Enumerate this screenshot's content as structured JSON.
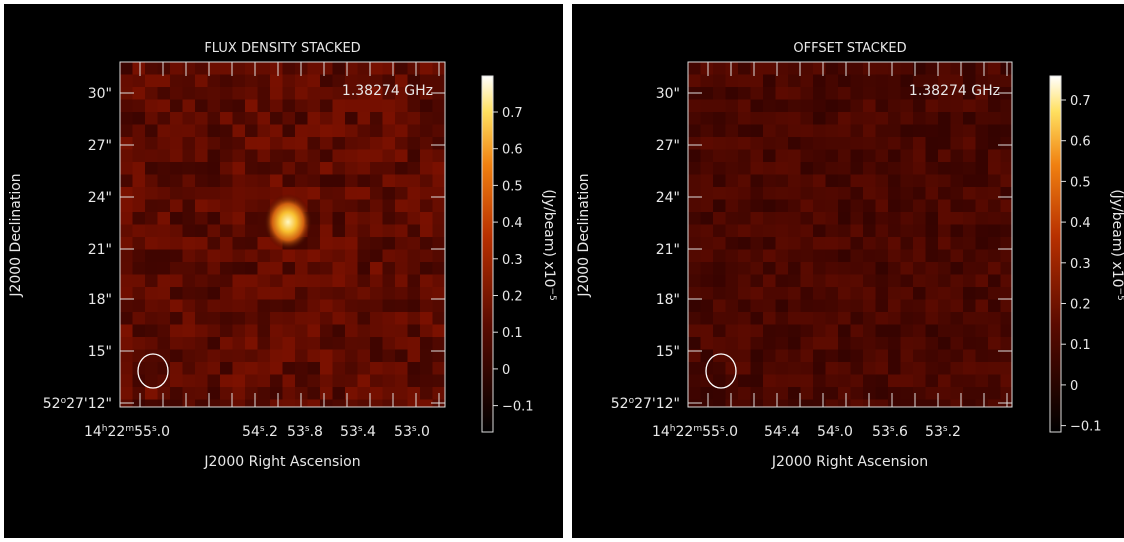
{
  "panels": [
    {
      "title": "FLUX DENSITY STACKED",
      "frequency": "1.38274 GHz",
      "y_axis_title": "J2000 Declination",
      "x_axis_title": "J2000 Right Ascension",
      "y_labels": [
        [
          "30\""
        ],
        [
          "27\""
        ],
        [
          "24\""
        ],
        [
          "21\""
        ],
        [
          "18\""
        ],
        [
          "15\""
        ],
        [
          "52",
          "o",
          "27'12\""
        ]
      ],
      "x_labels": [
        [
          "14",
          "h",
          "22",
          "m",
          "55",
          "s",
          ".0"
        ],
        [
          "54",
          "s",
          ".2"
        ],
        [
          "53",
          "s",
          ".8"
        ],
        [
          "53",
          "s",
          ".4"
        ],
        [
          "53",
          "s",
          ".0"
        ]
      ],
      "colorbar_ticks": [
        "0.7",
        "0.6",
        "0.5",
        "0.4",
        "0.3",
        "0.2",
        "0.1",
        "0",
        "−0.1"
      ],
      "colorbar_label": "(Jy/beam) x10",
      "colorbar_exponent": "−5"
    },
    {
      "title": "OFFSET STACKED",
      "frequency": "1.38274 GHz",
      "y_axis_title": "J2000 Declination",
      "x_axis_title": "J2000 Right Ascension",
      "y_labels": [
        [
          "30\""
        ],
        [
          "27\""
        ],
        [
          "24\""
        ],
        [
          "21\""
        ],
        [
          "18\""
        ],
        [
          "15\""
        ],
        [
          "52",
          "o",
          "27'12\""
        ]
      ],
      "x_labels": [
        [
          "14",
          "h",
          "22",
          "m",
          "55",
          "s",
          ".0"
        ],
        [
          "54",
          "s",
          ".4"
        ],
        [
          "54",
          "s",
          ".0"
        ],
        [
          "53",
          "s",
          ".6"
        ],
        [
          "53",
          "s",
          ".2"
        ]
      ],
      "colorbar_ticks": [
        "0.7",
        "0.6",
        "0.5",
        "0.4",
        "0.3",
        "0.2",
        "0.1",
        "0",
        "−0.1"
      ],
      "colorbar_label": "(Jy/beam) x10",
      "colorbar_exponent": "−5"
    }
  ]
}
